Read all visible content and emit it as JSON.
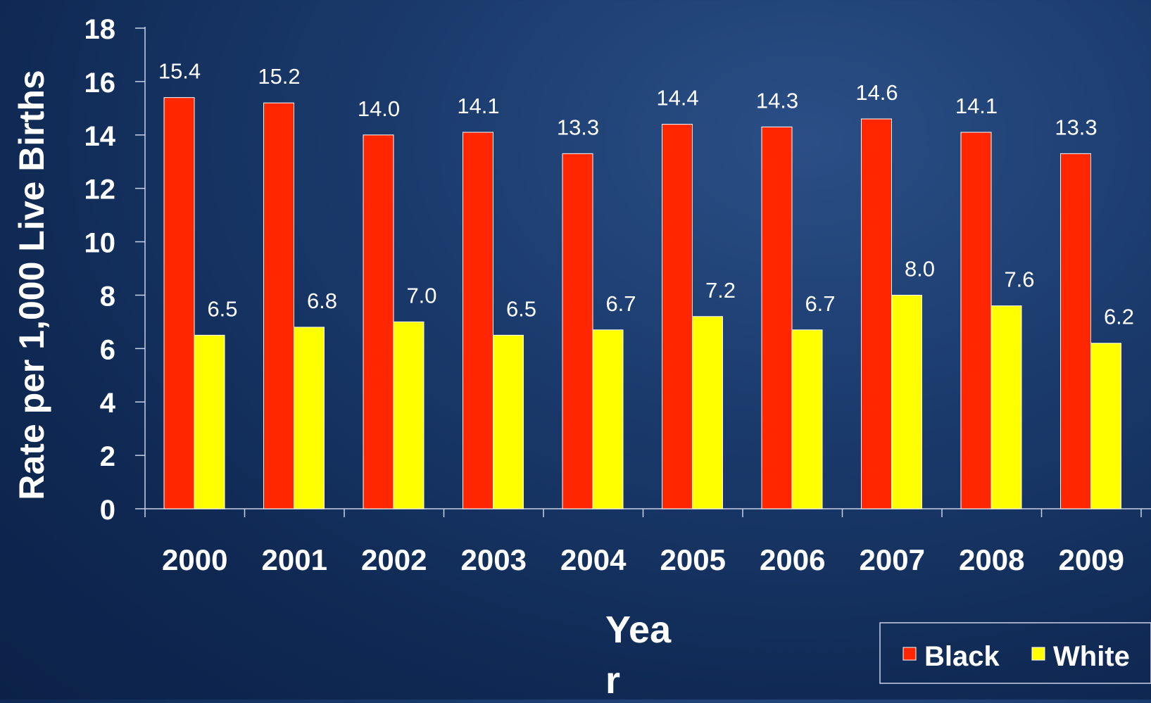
{
  "chart_data": {
    "type": "bar",
    "categories": [
      "2000",
      "2001",
      "2002",
      "2003",
      "2004",
      "2005",
      "2006",
      "2007",
      "2008",
      "2009"
    ],
    "series": [
      {
        "name": "Black",
        "values": [
          15.4,
          15.2,
          14.0,
          14.1,
          13.3,
          14.4,
          14.3,
          14.6,
          14.1,
          13.3
        ],
        "labels": [
          "15.4",
          "15.2",
          "14.0",
          "14.1",
          "13.3",
          "14.4",
          "14.3",
          "14.6",
          "14.1",
          "13.3"
        ],
        "color": "#ff2600"
      },
      {
        "name": "White",
        "values": [
          6.5,
          6.8,
          7.0,
          6.5,
          6.7,
          7.2,
          6.7,
          8.0,
          7.6,
          6.2
        ],
        "labels": [
          "6.5",
          "6.8",
          "7.0",
          "6.5",
          "6.7",
          "7.2",
          "6.7",
          "8.0",
          "7.6",
          "6.2"
        ],
        "color": "#ffff00"
      }
    ],
    "ylabel": "Rate per 1,000 Live Births",
    "xlabel_line1": "Yea",
    "xlabel_line2": "r",
    "ylim": [
      0,
      18
    ],
    "yticks": [
      "0",
      "2",
      "4",
      "6",
      "8",
      "10",
      "12",
      "14",
      "16",
      "18"
    ],
    "grid": false,
    "legend_position": "bottom-right"
  }
}
